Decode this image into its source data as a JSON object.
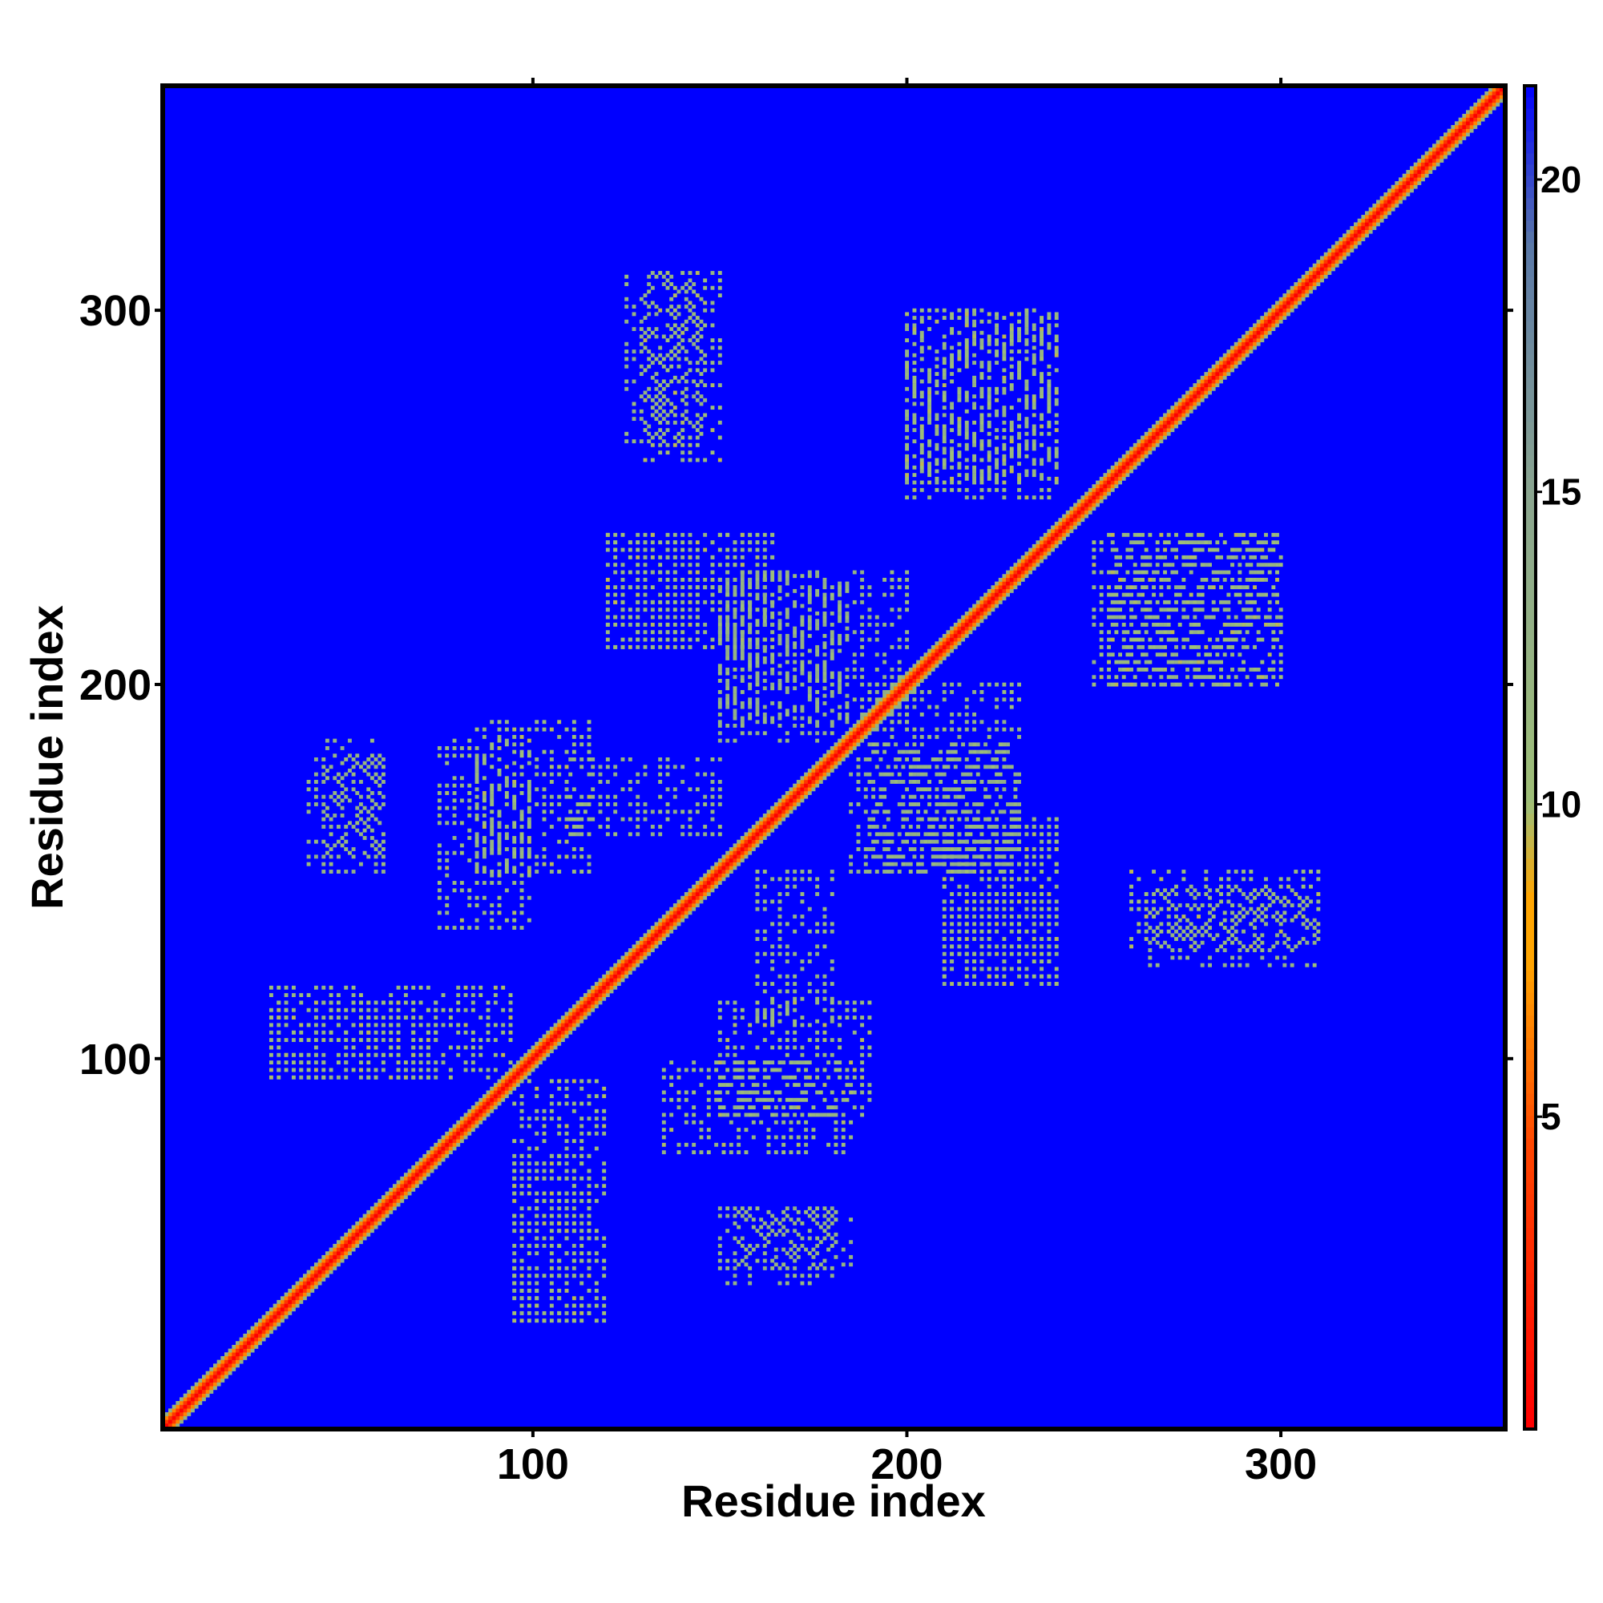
{
  "chart_data": {
    "type": "heatmap",
    "title": "",
    "xlabel": "Residue index",
    "ylabel": "Residue index",
    "xlim": [
      1,
      360
    ],
    "ylim": [
      1,
      360
    ],
    "x_ticks": [
      100,
      200,
      300
    ],
    "y_ticks": [
      100,
      200,
      300
    ],
    "x_tick_labels": [
      "100",
      "200",
      "300"
    ],
    "y_tick_labels": [
      "100",
      "200",
      "300"
    ],
    "colorbar": {
      "range": [
        0,
        21.5
      ],
      "ticks": [
        5,
        10,
        15,
        20
      ],
      "tick_labels": [
        "5",
        "10",
        "15",
        "20"
      ],
      "colors": [
        {
          "value": 0,
          "color": "#ff0000"
        },
        {
          "value": 4.5,
          "color": "#ff4500"
        },
        {
          "value": 7.5,
          "color": "#ffa500"
        },
        {
          "value": 8.5,
          "color": "#ffa500"
        },
        {
          "value": 10,
          "color": "#9fbf77"
        },
        {
          "value": 15,
          "color": "#8aa58f"
        },
        {
          "value": 19,
          "color": "#5a78a8"
        },
        {
          "value": 21.5,
          "color": "#0000ff"
        }
      ],
      "background_color": "#0000ff"
    },
    "diagonal": {
      "near_value": 3.5,
      "mid_value": 6.5,
      "far_value": 12.5
    },
    "contact_patches": [
      {
        "x": [
          85,
          115
        ],
        "y": [
          150,
          190
        ],
        "value": 11
      },
      {
        "x": [
          130,
          150
        ],
        "y": [
          260,
          310
        ],
        "value": 11
      },
      {
        "x": [
          210,
          240
        ],
        "y": [
          120,
          165
        ],
        "value": 11
      },
      {
        "x": [
          265,
          310
        ],
        "y": [
          125,
          145
        ],
        "value": 12
      },
      {
        "x": [
          135,
          185
        ],
        "y": [
          75,
          100
        ],
        "value": 11
      },
      {
        "x": [
          30,
          75
        ],
        "y": [
          95,
          115
        ],
        "value": 11
      },
      {
        "x": [
          95,
          120
        ],
        "y": [
          30,
          95
        ],
        "value": 11
      },
      {
        "x": [
          120,
          165
        ],
        "y": [
          210,
          240
        ],
        "value": 11
      },
      {
        "x": [
          200,
          240
        ],
        "y": [
          250,
          300
        ],
        "value": 11
      },
      {
        "x": [
          255,
          300
        ],
        "y": [
          200,
          240
        ],
        "value": 11
      },
      {
        "x": [
          155,
          185
        ],
        "y": [
          45,
          60
        ],
        "value": 12
      },
      {
        "x": [
          160,
          180
        ],
        "y": [
          110,
          150
        ],
        "value": 12
      },
      {
        "x": [
          40,
          60
        ],
        "y": [
          150,
          180
        ],
        "value": 12
      },
      {
        "x": [
          185,
          230
        ],
        "y": [
          150,
          185
        ],
        "value": 12
      },
      {
        "x": [
          150,
          200
        ],
        "y": [
          190,
          230
        ],
        "value": 12
      }
    ]
  }
}
